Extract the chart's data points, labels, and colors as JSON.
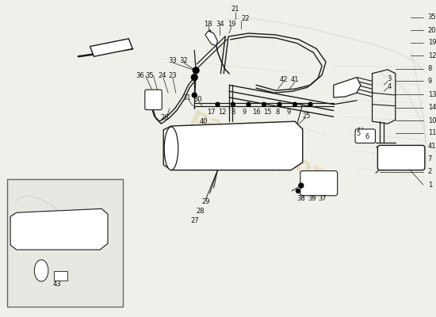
{
  "bg_color": "#f0f0ea",
  "line_color": "#1a1a1a",
  "gray_color": "#888888",
  "light_gray": "#cccccc",
  "label_color": "#111111",
  "watermark_color": "#d4b86a",
  "label_fontsize": 6.0,
  "figsize": [
    5.5,
    4.0
  ],
  "dpi": 100
}
